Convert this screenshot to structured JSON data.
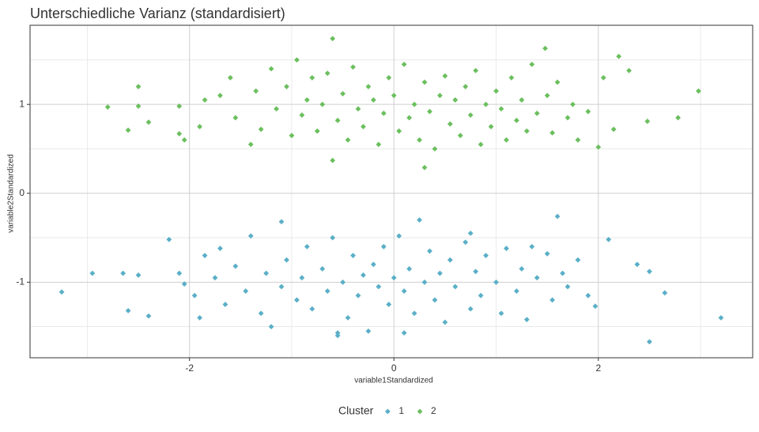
{
  "chart_data": {
    "type": "scatter",
    "title": "Unterschiedliche Varianz (standardisiert)",
    "x_label": "variable1Standardized",
    "y_label": "variable2Standardized",
    "legend_title": "Cluster",
    "legend": "bottom",
    "grid": true,
    "xlim": [
      -3.56,
      3.51
    ],
    "ylim": [
      -1.85,
      1.89
    ],
    "xticks": [
      -2,
      0,
      2
    ],
    "yticks": [
      -1,
      0,
      1
    ],
    "minor_xticks": [
      -3,
      -1,
      1,
      3
    ],
    "minor_yticks": [
      -1.5,
      -0.5,
      0.5,
      1.5
    ],
    "series": [
      {
        "name": "1",
        "color": "#5aafc7",
        "x": [
          -3.25,
          -2.95,
          -2.6,
          -2.65,
          -2.5,
          -2.4,
          3.2,
          2.5,
          2.65,
          2.5,
          2.38,
          1.6,
          0.25,
          -1.1,
          -0.55,
          2.1,
          1.97,
          -2.2,
          -2.1,
          -2.05,
          -1.95,
          -1.9,
          -1.85,
          -1.75,
          -1.65,
          -1.55,
          -1.45,
          -1.4,
          -1.3,
          -1.25,
          -1.2,
          -1.1,
          -1.05,
          -0.95,
          -0.9,
          -0.85,
          -0.8,
          -0.7,
          -0.65,
          -0.6,
          -0.5,
          -0.45,
          -0.4,
          -0.35,
          -0.3,
          -0.25,
          -0.2,
          -0.15,
          -0.1,
          -0.05,
          0.0,
          0.05,
          0.1,
          0.15,
          0.2,
          0.3,
          0.35,
          0.4,
          0.45,
          0.5,
          0.55,
          0.6,
          0.7,
          0.75,
          0.8,
          0.85,
          0.9,
          1.0,
          1.05,
          1.1,
          1.2,
          1.25,
          1.3,
          1.4,
          1.5,
          1.55,
          1.65,
          1.7,
          1.8,
          1.9,
          -0.55,
          0.1,
          -1.7,
          1.35,
          0.75
        ],
        "values": [
          -1.11,
          -0.9,
          -1.32,
          -0.9,
          -0.92,
          -1.38,
          -1.4,
          -1.67,
          -1.12,
          -0.88,
          -0.8,
          -0.26,
          -0.3,
          -0.32,
          -1.57,
          -0.52,
          -1.27,
          -0.52,
          -0.9,
          -1.02,
          -1.15,
          -1.4,
          -0.7,
          -0.95,
          -1.25,
          -0.82,
          -1.1,
          -0.48,
          -1.35,
          -0.9,
          -1.5,
          -1.05,
          -0.75,
          -1.2,
          -0.95,
          -0.6,
          -1.3,
          -0.85,
          -1.1,
          -0.5,
          -1.0,
          -1.4,
          -0.7,
          -1.15,
          -0.92,
          -1.55,
          -0.8,
          -1.05,
          -0.6,
          -1.25,
          -0.95,
          -0.48,
          -1.1,
          -0.85,
          -1.35,
          -1.0,
          -0.65,
          -1.2,
          -0.9,
          -1.45,
          -0.75,
          -1.05,
          -0.55,
          -1.3,
          -0.88,
          -1.15,
          -0.7,
          -1.0,
          -1.35,
          -0.62,
          -1.1,
          -0.85,
          -1.42,
          -0.95,
          -0.68,
          -1.2,
          -0.9,
          -1.05,
          -0.75,
          -1.15,
          -1.6,
          -1.57,
          -0.62,
          -0.6,
          -0.45
        ]
      },
      {
        "name": "2",
        "color": "#6bbf5e",
        "x": [
          -2.8,
          -2.5,
          -2.5,
          -2.6,
          -2.4,
          2.98,
          2.78,
          2.48,
          2.3,
          2.2,
          -0.6,
          1.48,
          0.3,
          -0.6,
          -2.1,
          -2.05,
          -2.1,
          -1.9,
          -1.85,
          -1.7,
          -1.6,
          -1.55,
          -1.4,
          -1.35,
          -1.3,
          -1.2,
          -1.15,
          -1.05,
          -1.0,
          -0.95,
          -0.9,
          -0.85,
          -0.8,
          -0.75,
          -0.7,
          -0.65,
          -0.55,
          -0.5,
          -0.45,
          -0.4,
          -0.35,
          -0.3,
          -0.25,
          -0.2,
          -0.15,
          -0.1,
          -0.05,
          0.0,
          0.05,
          0.1,
          0.15,
          0.2,
          0.25,
          0.3,
          0.35,
          0.4,
          0.45,
          0.5,
          0.55,
          0.6,
          0.65,
          0.7,
          0.75,
          0.8,
          0.85,
          0.9,
          0.95,
          1.0,
          1.05,
          1.1,
          1.15,
          1.2,
          1.25,
          1.3,
          1.35,
          1.4,
          1.5,
          1.55,
          1.6,
          1.7,
          1.75,
          1.8,
          1.9,
          2.0,
          2.05,
          2.15
        ],
        "values": [
          0.97,
          1.2,
          0.98,
          0.71,
          0.8,
          1.15,
          0.85,
          0.81,
          1.38,
          1.54,
          1.74,
          1.63,
          0.29,
          0.37,
          0.98,
          0.6,
          0.67,
          0.75,
          1.05,
          1.1,
          1.3,
          0.85,
          0.55,
          1.15,
          0.72,
          1.4,
          0.95,
          1.2,
          0.65,
          1.5,
          0.88,
          1.05,
          1.3,
          0.7,
          1.0,
          1.35,
          0.82,
          1.12,
          0.6,
          1.42,
          0.95,
          0.75,
          1.2,
          1.05,
          0.55,
          0.9,
          1.3,
          1.1,
          0.7,
          1.45,
          0.85,
          1.0,
          0.6,
          1.25,
          0.92,
          0.5,
          1.1,
          1.32,
          0.78,
          1.05,
          0.65,
          1.2,
          0.88,
          1.38,
          0.55,
          1.0,
          0.75,
          1.15,
          0.95,
          0.6,
          1.3,
          0.82,
          1.05,
          0.7,
          1.45,
          0.9,
          1.1,
          0.68,
          1.25,
          0.85,
          1.0,
          0.6,
          0.92,
          0.52,
          1.3,
          0.72
        ]
      }
    ]
  }
}
